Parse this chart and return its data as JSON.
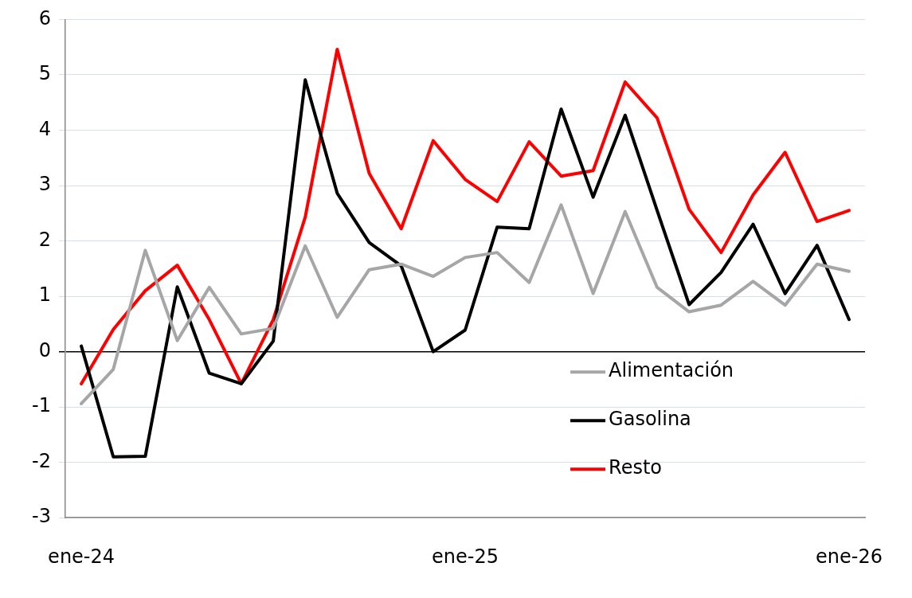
{
  "chart_data": {
    "type": "line",
    "categories": [
      "ene-24",
      null,
      null,
      null,
      null,
      null,
      null,
      null,
      null,
      null,
      null,
      null,
      "ene-25",
      null,
      null,
      null,
      null,
      null,
      null,
      null,
      null,
      null,
      null,
      null,
      "ene-26"
    ],
    "series": [
      {
        "name": "Alimentación",
        "color": "#a6a6a6",
        "values": [
          -0.94,
          -0.32,
          1.83,
          0.2,
          1.16,
          0.32,
          0.42,
          1.91,
          0.62,
          1.48,
          1.58,
          1.36,
          1.7,
          1.79,
          1.25,
          2.65,
          1.05,
          2.53,
          1.16,
          0.72,
          0.84,
          1.27,
          0.84,
          1.58,
          1.45
        ]
      },
      {
        "name": "Gasolina",
        "color": "#000000",
        "values": [
          0.1,
          -1.9,
          -1.89,
          1.17,
          -0.39,
          -0.58,
          0.19,
          4.91,
          2.86,
          1.97,
          1.55,
          0,
          0.39,
          2.25,
          2.22,
          4.38,
          2.79,
          4.27,
          2.55,
          0.85,
          1.43,
          2.3,
          1.05,
          1.92,
          0.58
        ]
      },
      {
        "name": "Resto",
        "color": "#ff0000",
        "values": [
          -0.58,
          0.4,
          1.1,
          1.56,
          0.58,
          -0.58,
          0.58,
          2.43,
          5.46,
          3.22,
          2.22,
          3.81,
          3.11,
          2.71,
          3.79,
          3.17,
          3.27,
          4.87,
          4.22,
          2.57,
          1.79,
          2.83,
          3.6,
          2.35,
          2.55
        ]
      }
    ],
    "ylim": [
      -3,
      6
    ],
    "yticks": [
      -3,
      -2,
      -1,
      0,
      1,
      2,
      3,
      4,
      5,
      6
    ],
    "grid": "y",
    "legend": "bottom right",
    "marker": "none",
    "line_style": "solid"
  }
}
